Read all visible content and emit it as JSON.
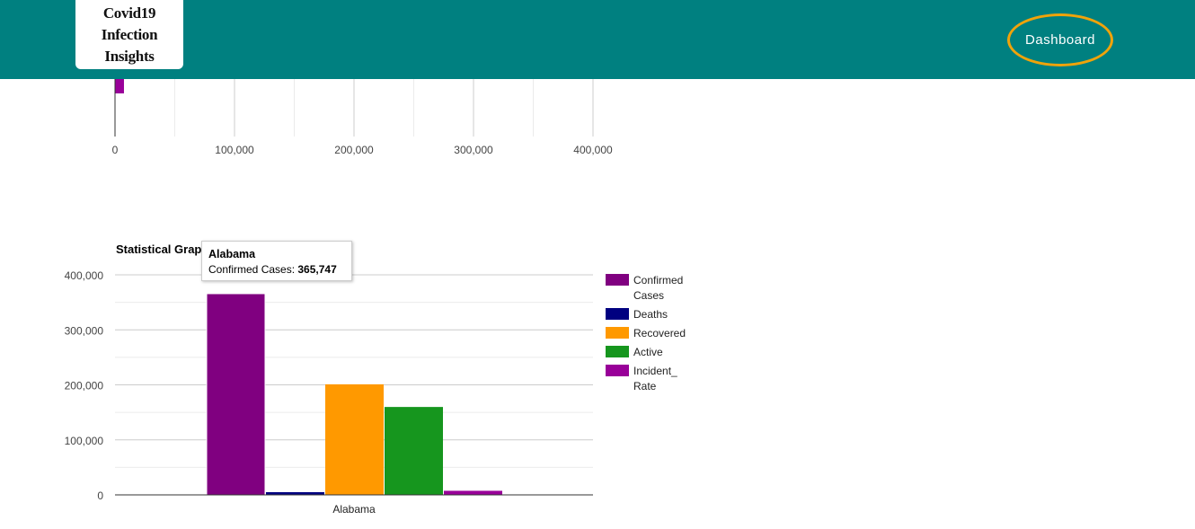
{
  "header": {
    "logo_text": "Covid19 Infection Insights",
    "dashboard_label": "Dashboard",
    "bg_color": "#008080",
    "button_border_color": "#f0a30a"
  },
  "chart_data": [
    {
      "type": "bar",
      "orientation": "horizontal",
      "partially_visible": true,
      "x_ticks": [
        "0",
        "100,000",
        "200,000",
        "300,000",
        "400,000"
      ],
      "xlim": [
        0,
        400000
      ],
      "visible_series": [
        {
          "name": "Incident_Rate",
          "value": 7500,
          "color": "#990099"
        }
      ]
    },
    {
      "type": "bar",
      "title": "Statistical Graph of Alabama",
      "title_visible_parts": [
        "Statistical Grap",
        "bama"
      ],
      "categories": [
        "Alabama"
      ],
      "ylim": [
        0,
        400000
      ],
      "y_ticks": [
        "0",
        "100,000",
        "200,000",
        "300,000",
        "400,000"
      ],
      "grid": true,
      "legend_position": "right",
      "series": [
        {
          "name": "Confirmed Cases",
          "values": [
            365747
          ],
          "color": "#800080"
        },
        {
          "name": "Deaths",
          "values": [
            4900
          ],
          "color": "#000080"
        },
        {
          "name": "Recovered",
          "values": [
            201000
          ],
          "color": "#ff9900"
        },
        {
          "name": "Active",
          "values": [
            159800
          ],
          "color": "#16961e"
        },
        {
          "name": "Incident_Rate",
          "values": [
            7400
          ],
          "color": "#990099"
        }
      ],
      "legend_labels": [
        [
          "Confirmed",
          "Cases"
        ],
        [
          "Deaths"
        ],
        [
          "Recovered"
        ],
        [
          "Active"
        ],
        [
          "Incident_",
          "Rate"
        ]
      ],
      "tooltip": {
        "title": "Alabama",
        "label": "Confirmed Cases: ",
        "value": "365,747"
      }
    }
  ]
}
